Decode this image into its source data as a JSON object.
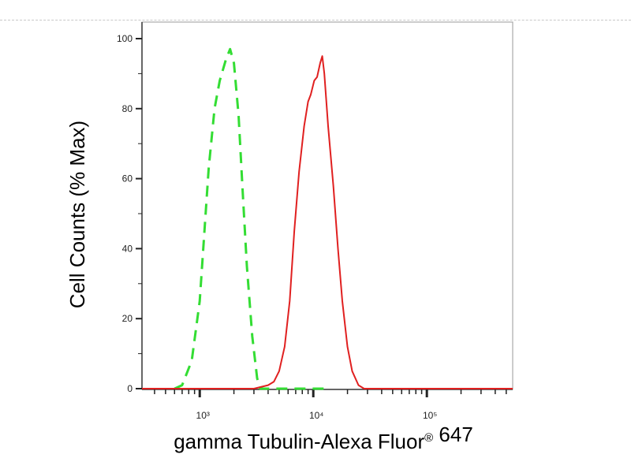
{
  "chart_data": {
    "type": "line",
    "title": "",
    "xlabel": "gamma Tubulin-Alexa Fluor® 647",
    "ylabel": "Cell Counts (% Max)",
    "x_scale": "log",
    "xlim": [
      310,
      570000
    ],
    "ylim": [
      0,
      100
    ],
    "x_ticks": [
      1000,
      10000,
      100000
    ],
    "x_tick_labels": [
      "10³",
      "10⁴",
      "10⁵"
    ],
    "y_ticks": [
      0,
      20,
      40,
      60,
      80,
      100
    ],
    "y_tick_labels": [
      "0",
      "20",
      "40",
      "60",
      "80",
      "100"
    ],
    "grid": false,
    "legend": "none",
    "series": [
      {
        "color": "#33dd33",
        "style": "dashed",
        "x": [
          600,
          700,
          850,
          1000,
          1100,
          1200,
          1350,
          1500,
          1700,
          1850,
          2000,
          2200,
          2400,
          2600,
          2900,
          3200,
          3400,
          5000,
          8000,
          14000
        ],
        "y": [
          0,
          1,
          8,
          25,
          45,
          63,
          80,
          88,
          94,
          97,
          93,
          78,
          55,
          35,
          15,
          3,
          0,
          0,
          0,
          0
        ]
      },
      {
        "color": "#e02020",
        "style": "solid",
        "x": [
          310,
          3000,
          4000,
          4500,
          5000,
          5600,
          6200,
          6800,
          7500,
          8300,
          9000,
          9500,
          10200,
          10800,
          11500,
          12000,
          12500,
          13500,
          15000,
          16500,
          18000,
          20000,
          22000,
          25000,
          28000,
          570000
        ],
        "y": [
          0,
          0,
          1,
          2,
          5,
          12,
          25,
          45,
          62,
          75,
          82,
          84,
          88,
          89,
          93,
          95,
          90,
          75,
          58,
          40,
          25,
          12,
          5,
          1,
          0,
          0
        ]
      }
    ]
  }
}
